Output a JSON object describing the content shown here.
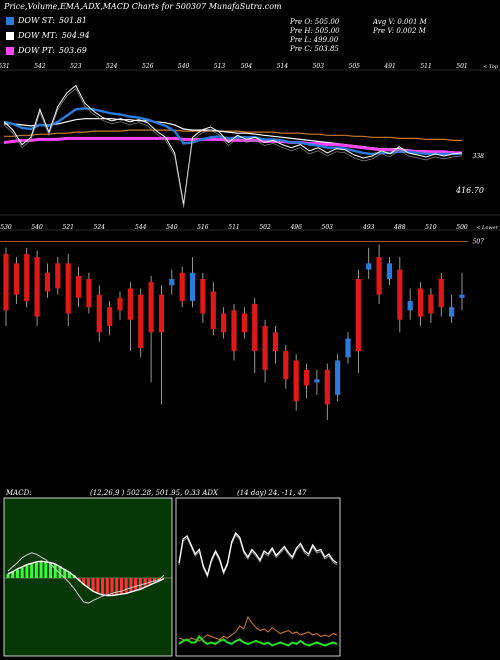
{
  "header": {
    "title": "Price,Volume,EMA,ADX,MACD Charts for 500307 MunafaSutra.com"
  },
  "legend": [
    {
      "label": "DOW ST:",
      "value": "501.81",
      "color": "#2a7bdc"
    },
    {
      "label": "DOW MT:",
      "value": "504.94",
      "color": "#ffffff"
    },
    {
      "label": "DOW PT:",
      "value": "503.69",
      "color": "#ff44ff"
    }
  ],
  "info": {
    "col1": [
      "Pre O: 505.00",
      "Pre H: 505.00",
      "Pre L: 499.00",
      "Pre C: 503.85"
    ],
    "col2": [
      "Avg V: 0.001 M",
      "Pre V: 0.002 M"
    ]
  },
  "panels": {
    "macd_header": "MACD:",
    "macd_values": "(12,26,9 ) 502.28, 501.95, 0.33 ADX",
    "adx_values": "(14 day) 24, -11, 47"
  },
  "chart_data": [
    {
      "type": "line",
      "name": "price",
      "corner_label": "< Top",
      "price_labels": [
        "531",
        "542",
        "523",
        "524",
        "526",
        "540",
        "513",
        "504",
        "514",
        "503",
        "505",
        "491",
        "511",
        "501"
      ],
      "axis_labels": {
        "upper": "338",
        "lower": "416.70"
      },
      "close": [
        520,
        512,
        498,
        505,
        532,
        510,
        535,
        548,
        555,
        538,
        530,
        524,
        521,
        523,
        520,
        522,
        519,
        511,
        505,
        490,
        440,
        505,
        512,
        515,
        510,
        500,
        507,
        503,
        505,
        500,
        502,
        498,
        495,
        498,
        492,
        495,
        490,
        494,
        493,
        488,
        485,
        487,
        492,
        489,
        496,
        490,
        488,
        486,
        489,
        487,
        489,
        490
      ],
      "ema_short": [
        520,
        518,
        514,
        513,
        517,
        516,
        520,
        526,
        532,
        533,
        532,
        530,
        528,
        527,
        525,
        524,
        522,
        519,
        516,
        511,
        499,
        500,
        503,
        505,
        506,
        504,
        505,
        505,
        505,
        503,
        503,
        502,
        500,
        500,
        498,
        497,
        495,
        495,
        494,
        492,
        490,
        489,
        490,
        490,
        491,
        491,
        490,
        489,
        489,
        489,
        489,
        489
      ],
      "ema_mid": [
        518,
        518,
        517,
        516,
        517,
        517,
        518,
        520,
        522,
        523,
        523,
        523,
        523,
        522,
        522,
        521,
        521,
        520,
        519,
        517,
        513,
        512,
        512,
        512,
        511,
        510,
        509,
        509,
        508,
        507,
        506,
        505,
        504,
        503,
        502,
        501,
        500,
        499,
        498,
        497,
        496,
        495,
        494,
        494,
        494,
        493,
        492,
        492,
        491,
        491,
        491,
        490
      ],
      "ema_long": [
        506,
        506,
        507,
        507,
        508,
        508,
        509,
        509,
        510,
        510,
        511,
        511,
        511,
        511,
        512,
        512,
        512,
        512,
        512,
        512,
        511,
        511,
        511,
        511,
        511,
        511,
        511,
        510,
        510,
        510,
        510,
        509,
        509,
        509,
        508,
        508,
        507,
        507,
        507,
        506,
        506,
        505,
        505,
        505,
        504,
        504,
        504,
        503,
        503,
        503,
        502,
        502
      ],
      "ema_pt": [
        500,
        501,
        502,
        502,
        503,
        503,
        503,
        504,
        504,
        504,
        504,
        504,
        504,
        504,
        504,
        504,
        504,
        504,
        504,
        504,
        503,
        503,
        503,
        503,
        503,
        502,
        502,
        502,
        502,
        501,
        501,
        501,
        500,
        500,
        499,
        499,
        498,
        498,
        497,
        496,
        495,
        494,
        493,
        493,
        492,
        492,
        491,
        491,
        491,
        491,
        490,
        490
      ]
    },
    {
      "type": "bar",
      "name": "candles",
      "corner_label": "< Lower",
      "price_labels": [
        "530",
        "540",
        "521",
        "524",
        "544",
        "540",
        "516",
        "511",
        "502",
        "496",
        "503",
        "493",
        "488",
        "510",
        "500"
      ],
      "axis_label": "507",
      "candles": [
        {
          "o": 503,
          "c": 485,
          "h": 505,
          "l": 480
        },
        {
          "o": 500,
          "c": 490,
          "h": 502,
          "l": 487
        },
        {
          "o": 503,
          "c": 488,
          "h": 505,
          "l": 486
        },
        {
          "o": 502,
          "c": 483,
          "h": 504,
          "l": 480
        },
        {
          "o": 497,
          "c": 491,
          "h": 500,
          "l": 489
        },
        {
          "o": 500,
          "c": 492,
          "h": 502,
          "l": 490
        },
        {
          "o": 500,
          "c": 484,
          "h": 503,
          "l": 480
        },
        {
          "o": 496,
          "c": 489,
          "h": 499,
          "l": 486
        },
        {
          "o": 495,
          "c": 486,
          "h": 497,
          "l": 484
        },
        {
          "o": 490,
          "c": 478,
          "h": 493,
          "l": 475
        },
        {
          "o": 486,
          "c": 480,
          "h": 488,
          "l": 477
        },
        {
          "o": 489,
          "c": 485,
          "h": 491,
          "l": 482
        },
        {
          "o": 492,
          "c": 482,
          "h": 494,
          "l": 472
        },
        {
          "o": 490,
          "c": 473,
          "h": 492,
          "l": 470
        },
        {
          "o": 494,
          "c": 478,
          "h": 496,
          "l": 462
        },
        {
          "o": 490,
          "c": 478,
          "h": 493,
          "l": 455
        },
        {
          "o": 493,
          "c": 495,
          "h": 498,
          "l": 490
        },
        {
          "o": 497,
          "c": 488,
          "h": 499,
          "l": 486
        },
        {
          "o": 488,
          "c": 497,
          "h": 502,
          "l": 486
        },
        {
          "o": 495,
          "c": 484,
          "h": 497,
          "l": 481
        },
        {
          "o": 491,
          "c": 479,
          "h": 494,
          "l": 477
        },
        {
          "o": 484,
          "c": 478,
          "h": 486,
          "l": 476
        },
        {
          "o": 485,
          "c": 472,
          "h": 487,
          "l": 469
        },
        {
          "o": 484,
          "c": 478,
          "h": 486,
          "l": 476
        },
        {
          "o": 487,
          "c": 472,
          "h": 489,
          "l": 465
        },
        {
          "o": 480,
          "c": 466,
          "h": 482,
          "l": 462
        },
        {
          "o": 478,
          "c": 472,
          "h": 480,
          "l": 468
        },
        {
          "o": 472,
          "c": 463,
          "h": 474,
          "l": 460
        },
        {
          "o": 469,
          "c": 456,
          "h": 471,
          "l": 453
        },
        {
          "o": 466,
          "c": 461,
          "h": 468,
          "l": 457
        },
        {
          "o": 462,
          "c": 463,
          "h": 466,
          "l": 458
        },
        {
          "o": 466,
          "c": 455,
          "h": 468,
          "l": 450
        },
        {
          "o": 458,
          "c": 469,
          "h": 471,
          "l": 456
        },
        {
          "o": 470,
          "c": 476,
          "h": 478,
          "l": 468
        },
        {
          "o": 495,
          "c": 472,
          "h": 498,
          "l": 465
        },
        {
          "o": 498,
          "c": 500,
          "h": 505,
          "l": 495
        },
        {
          "o": 502,
          "c": 490,
          "h": 506,
          "l": 487
        },
        {
          "o": 495,
          "c": 500,
          "h": 502,
          "l": 493
        },
        {
          "o": 498,
          "c": 482,
          "h": 502,
          "l": 478
        },
        {
          "o": 485,
          "c": 488,
          "h": 492,
          "l": 482
        },
        {
          "o": 492,
          "c": 483,
          "h": 494,
          "l": 480
        },
        {
          "o": 490,
          "c": 484,
          "h": 492,
          "l": 481
        },
        {
          "o": 495,
          "c": 486,
          "h": 497,
          "l": 483
        },
        {
          "o": 483,
          "c": 486,
          "h": 490,
          "l": 481
        },
        {
          "o": 489,
          "c": 490,
          "h": 497,
          "l": 485
        }
      ]
    },
    {
      "type": "area",
      "name": "macd",
      "histogram": [
        0.6,
        0.9,
        1.2,
        1.5,
        1.8,
        2.0,
        2.2,
        2.3,
        2.3,
        2.2,
        2.0,
        1.7,
        1.3,
        0.9,
        0.4,
        -0.3,
        -0.9,
        -1.4,
        -1.8,
        -2.1,
        -2.3,
        -2.4,
        -2.4,
        -2.4,
        -2.3,
        -2.2,
        -2.0,
        -1.8,
        -1.5,
        -1.2,
        -0.9,
        -0.6,
        -0.3,
        -0.1
      ],
      "macd_line": [
        1.0,
        1.6,
        2.2,
        2.9,
        3.3,
        3.6,
        3.4,
        3.0,
        2.6,
        2.0,
        1.3,
        0.6,
        0.0,
        -0.7,
        -1.5,
        -2.5,
        -3.4,
        -3.6,
        -3.2,
        -2.9,
        -2.6,
        -2.4,
        -2.2,
        -2.0,
        -1.9,
        -1.6,
        -1.4,
        -1.2,
        -1.0,
        -0.8,
        -0.6,
        -0.4,
        -0.2,
        0.4
      ],
      "signal_line": [
        0.6,
        0.9,
        1.3,
        1.6,
        1.9,
        2.1,
        2.3,
        2.4,
        2.3,
        2.2,
        2.0,
        1.6,
        1.2,
        0.8,
        0.3,
        -0.3,
        -0.9,
        -1.4,
        -1.9,
        -2.2,
        -2.4,
        -2.5,
        -2.5,
        -2.4,
        -2.3,
        -2.2,
        -2.0,
        -1.8,
        -1.6,
        -1.3,
        -1.0,
        -0.7,
        -0.4,
        -0.1
      ]
    },
    {
      "type": "line",
      "name": "adx",
      "adx_line": [
        62,
        78,
        80,
        74,
        68,
        71,
        60,
        54,
        64,
        70,
        65,
        56,
        62,
        76,
        82,
        79,
        70,
        66,
        71,
        68,
        64,
        70,
        68,
        72,
        67,
        70,
        73,
        69,
        66,
        72,
        75,
        70,
        68,
        74,
        70,
        71,
        66,
        68,
        64,
        62
      ],
      "plus_di": [
        8,
        10,
        11,
        9,
        9,
        13,
        10,
        8,
        9,
        8,
        10,
        11,
        9,
        8,
        10,
        11,
        9,
        8,
        9,
        10,
        9,
        8,
        9,
        7,
        8,
        9,
        8,
        7,
        9,
        8,
        10,
        8,
        7,
        8,
        9,
        8,
        7,
        8,
        9,
        8
      ],
      "minus_di": [
        12,
        11,
        10,
        12,
        11,
        10,
        12,
        14,
        13,
        12,
        11,
        13,
        12,
        14,
        16,
        20,
        18,
        26,
        22,
        19,
        17,
        18,
        16,
        19,
        17,
        15,
        16,
        17,
        15,
        16,
        14,
        15,
        16,
        14,
        15,
        13,
        14,
        13,
        15,
        14
      ]
    }
  ]
}
